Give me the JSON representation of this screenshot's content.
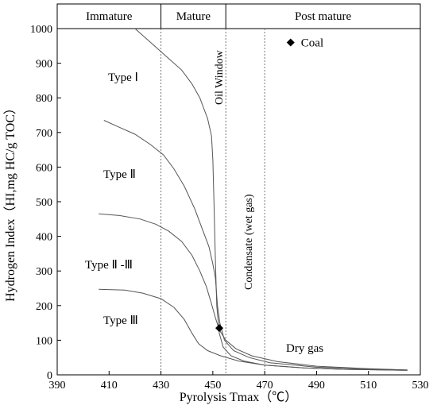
{
  "chart_data": {
    "type": "line",
    "xlabel": "Pyrolysis  Tmax（℃）",
    "ylabel": "Hydrogen Index（HI,mg HC/g TOC）",
    "xlim": [
      390,
      530
    ],
    "ylim": [
      0,
      1000
    ],
    "x_ticks": [
      "390",
      "410",
      "430",
      "450",
      "470",
      "490",
      "510",
      "530"
    ],
    "y_ticks": [
      "0",
      "100",
      "200",
      "300",
      "400",
      "500",
      "600",
      "700",
      "800",
      "900",
      "1000"
    ],
    "zones": [
      {
        "label": "Immature",
        "from": 390,
        "to": 430
      },
      {
        "label": "Mature",
        "from": 430,
        "to": 455
      },
      {
        "label": "Post mature",
        "from": 455,
        "to": 530
      }
    ],
    "boundaries": [
      430,
      455,
      470
    ],
    "series": [
      {
        "label": "Type Ⅰ",
        "points": [
          [
            420,
            1000
          ],
          [
            426,
            960
          ],
          [
            432,
            920
          ],
          [
            438,
            880
          ],
          [
            442,
            840
          ],
          [
            445,
            800
          ],
          [
            448,
            740
          ],
          [
            449.5,
            690
          ],
          [
            450,
            620
          ],
          [
            450.5,
            480
          ],
          [
            451,
            330
          ],
          [
            451.5,
            200
          ],
          [
            452.5,
            120
          ],
          [
            454,
            80
          ],
          [
            457,
            55
          ],
          [
            462,
            40
          ],
          [
            470,
            28
          ],
          [
            485,
            20
          ],
          [
            500,
            16
          ],
          [
            525,
            13
          ]
        ]
      },
      {
        "label": "Type Ⅱ",
        "points": [
          [
            408,
            735
          ],
          [
            414,
            715
          ],
          [
            420,
            695
          ],
          [
            426,
            665
          ],
          [
            431,
            635
          ],
          [
            435,
            595
          ],
          [
            439,
            545
          ],
          [
            443,
            480
          ],
          [
            446,
            420
          ],
          [
            448.5,
            370
          ],
          [
            450,
            320
          ],
          [
            451,
            280
          ],
          [
            451.8,
            200
          ],
          [
            452.7,
            150
          ],
          [
            454.5,
            100
          ],
          [
            458,
            70
          ],
          [
            464,
            50
          ],
          [
            472,
            35
          ],
          [
            490,
            22
          ],
          [
            510,
            17
          ],
          [
            525,
            14
          ]
        ]
      },
      {
        "label": "Type Ⅱ -Ⅲ",
        "points": [
          [
            406,
            465
          ],
          [
            414,
            460
          ],
          [
            422,
            450
          ],
          [
            428,
            435
          ],
          [
            433,
            415
          ],
          [
            438,
            385
          ],
          [
            442,
            345
          ],
          [
            445,
            300
          ],
          [
            447.5,
            255
          ],
          [
            449.5,
            205
          ],
          [
            451,
            165
          ],
          [
            452.5,
            130
          ],
          [
            455,
            100
          ],
          [
            459,
            75
          ],
          [
            465,
            55
          ],
          [
            475,
            38
          ],
          [
            490,
            25
          ],
          [
            510,
            18
          ],
          [
            525,
            14
          ]
        ]
      },
      {
        "label": "Type Ⅲ",
        "points": [
          [
            406,
            247
          ],
          [
            416,
            245
          ],
          [
            423,
            236
          ],
          [
            430,
            220
          ],
          [
            435,
            195
          ],
          [
            439,
            160
          ],
          [
            442,
            120
          ],
          [
            444.5,
            90
          ],
          [
            448,
            70
          ],
          [
            453,
            55
          ],
          [
            460,
            40
          ],
          [
            470,
            28
          ],
          [
            485,
            20
          ],
          [
            500,
            16
          ],
          [
            525,
            13
          ]
        ]
      }
    ],
    "markers": [
      {
        "label": "Coal",
        "x": 480,
        "y": 960
      },
      {
        "label": "",
        "x": 452.5,
        "y": 135
      }
    ],
    "annotations": {
      "oil_window": "Oil Window",
      "condensate": "Condensate (wet gas)",
      "dry_gas": "Dry gas"
    }
  }
}
